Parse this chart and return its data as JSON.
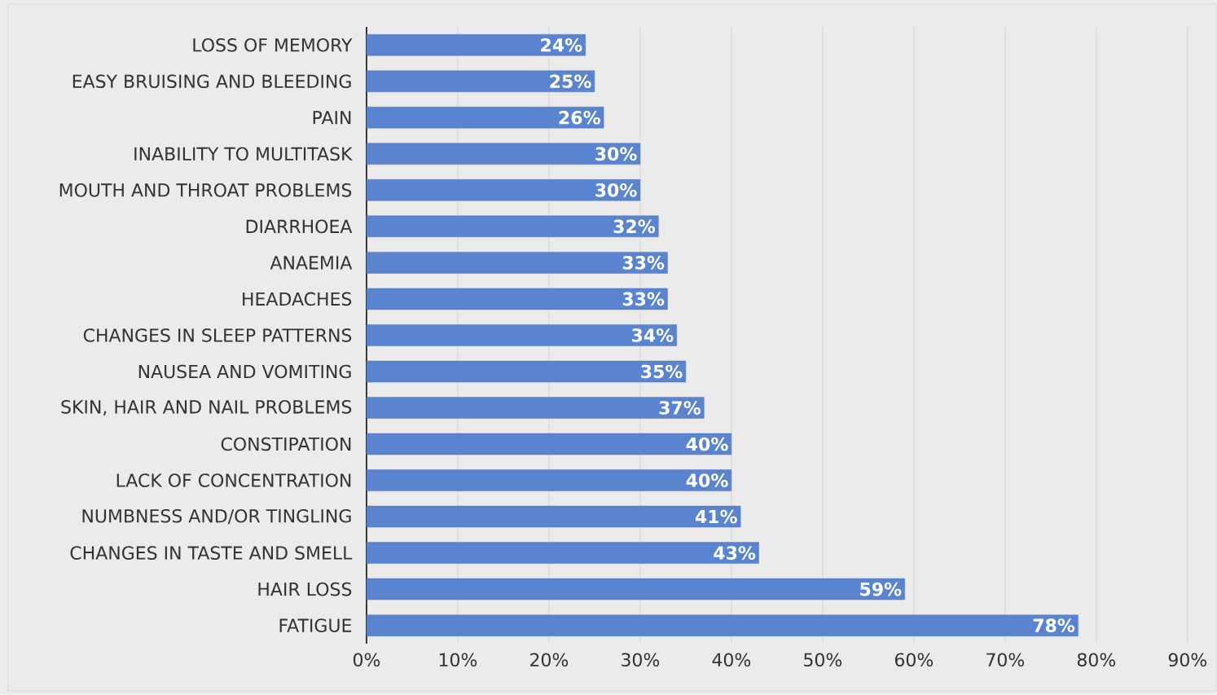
{
  "chart_data": {
    "type": "bar",
    "orientation": "horizontal",
    "categories": [
      "LOSS OF MEMORY",
      "EASY BRUISING AND BLEEDING",
      "PAIN",
      "INABILITY TO MULTITASK",
      "MOUTH AND THROAT PROBLEMS",
      "DIARRHOEA",
      "ANAEMIA",
      "HEADACHES",
      "CHANGES IN SLEEP PATTERNS",
      "NAUSEA AND VOMITING",
      "SKIN, HAIR AND NAIL PROBLEMS",
      "CONSTIPATION",
      "LACK OF CONCENTRATION",
      "NUMBNESS AND/OR TINGLING",
      "CHANGES IN TASTE AND SMELL",
      "HAIR LOSS",
      "FATIGUE"
    ],
    "values": [
      24,
      25,
      26,
      30,
      30,
      32,
      33,
      33,
      34,
      35,
      37,
      40,
      40,
      41,
      43,
      59,
      78
    ],
    "value_labels": [
      "24%",
      "25%",
      "26%",
      "30%",
      "30%",
      "32%",
      "33%",
      "33%",
      "34%",
      "35%",
      "37%",
      "40%",
      "40%",
      "41%",
      "43%",
      "59%",
      "78%"
    ],
    "color": "#5a84cf",
    "xlim": [
      0,
      90
    ],
    "xticks": [
      {
        "value": 0,
        "label": "0%"
      },
      {
        "value": 10,
        "label": "10%"
      },
      {
        "value": 20,
        "label": "20%"
      },
      {
        "value": 30,
        "label": "30%"
      },
      {
        "value": 40,
        "label": "40%"
      },
      {
        "value": 50,
        "label": "50%"
      },
      {
        "value": 60,
        "label": "60%"
      },
      {
        "value": 70,
        "label": "70%"
      },
      {
        "value": 80,
        "label": "80%"
      },
      {
        "value": 90,
        "label": "90%"
      }
    ],
    "grid": "x"
  }
}
